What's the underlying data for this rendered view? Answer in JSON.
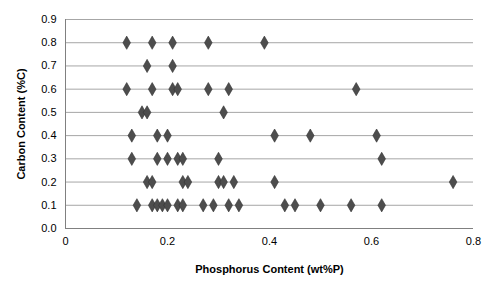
{
  "chart_data": {
    "type": "scatter",
    "x_label": "Phosphorus Content (wt%P)",
    "y_label": "Carbon Content (%C)",
    "x": [
      0.12,
      0.17,
      0.21,
      0.28,
      0.39,
      0.16,
      0.21,
      0.12,
      0.17,
      0.21,
      0.22,
      0.28,
      0.32,
      0.57,
      0.15,
      0.16,
      0.31,
      0.13,
      0.18,
      0.2,
      0.41,
      0.48,
      0.61,
      0.13,
      0.18,
      0.2,
      0.22,
      0.23,
      0.3,
      0.62,
      0.16,
      0.17,
      0.23,
      0.24,
      0.3,
      0.31,
      0.33,
      0.41,
      0.76,
      0.14,
      0.17,
      0.18,
      0.19,
      0.2,
      0.22,
      0.23,
      0.27,
      0.29,
      0.32,
      0.34,
      0.43,
      0.45,
      0.5,
      0.56,
      0.62
    ],
    "values": [
      0.8,
      0.8,
      0.8,
      0.8,
      0.8,
      0.7,
      0.7,
      0.6,
      0.6,
      0.6,
      0.6,
      0.6,
      0.6,
      0.6,
      0.5,
      0.5,
      0.5,
      0.4,
      0.4,
      0.4,
      0.4,
      0.4,
      0.4,
      0.3,
      0.3,
      0.3,
      0.3,
      0.3,
      0.3,
      0.3,
      0.2,
      0.2,
      0.2,
      0.2,
      0.2,
      0.2,
      0.2,
      0.2,
      0.2,
      0.1,
      0.1,
      0.1,
      0.1,
      0.1,
      0.1,
      0.1,
      0.1,
      0.1,
      0.1,
      0.1,
      0.1,
      0.1,
      0.1,
      0.1,
      0.1
    ],
    "color": "#4d4d4d",
    "marker": "diamond",
    "xlim": [
      0,
      0.8
    ],
    "xticks": [
      0,
      0.2,
      0.4,
      0.6,
      0.8
    ],
    "ylim": [
      0,
      0.9
    ],
    "yticks": [
      {
        "value": 0,
        "label": "0.0"
      },
      0.1,
      0.2,
      0.3,
      0.4,
      0.5,
      0.6,
      0.7,
      0.8,
      0.9
    ],
    "grid": true
  }
}
